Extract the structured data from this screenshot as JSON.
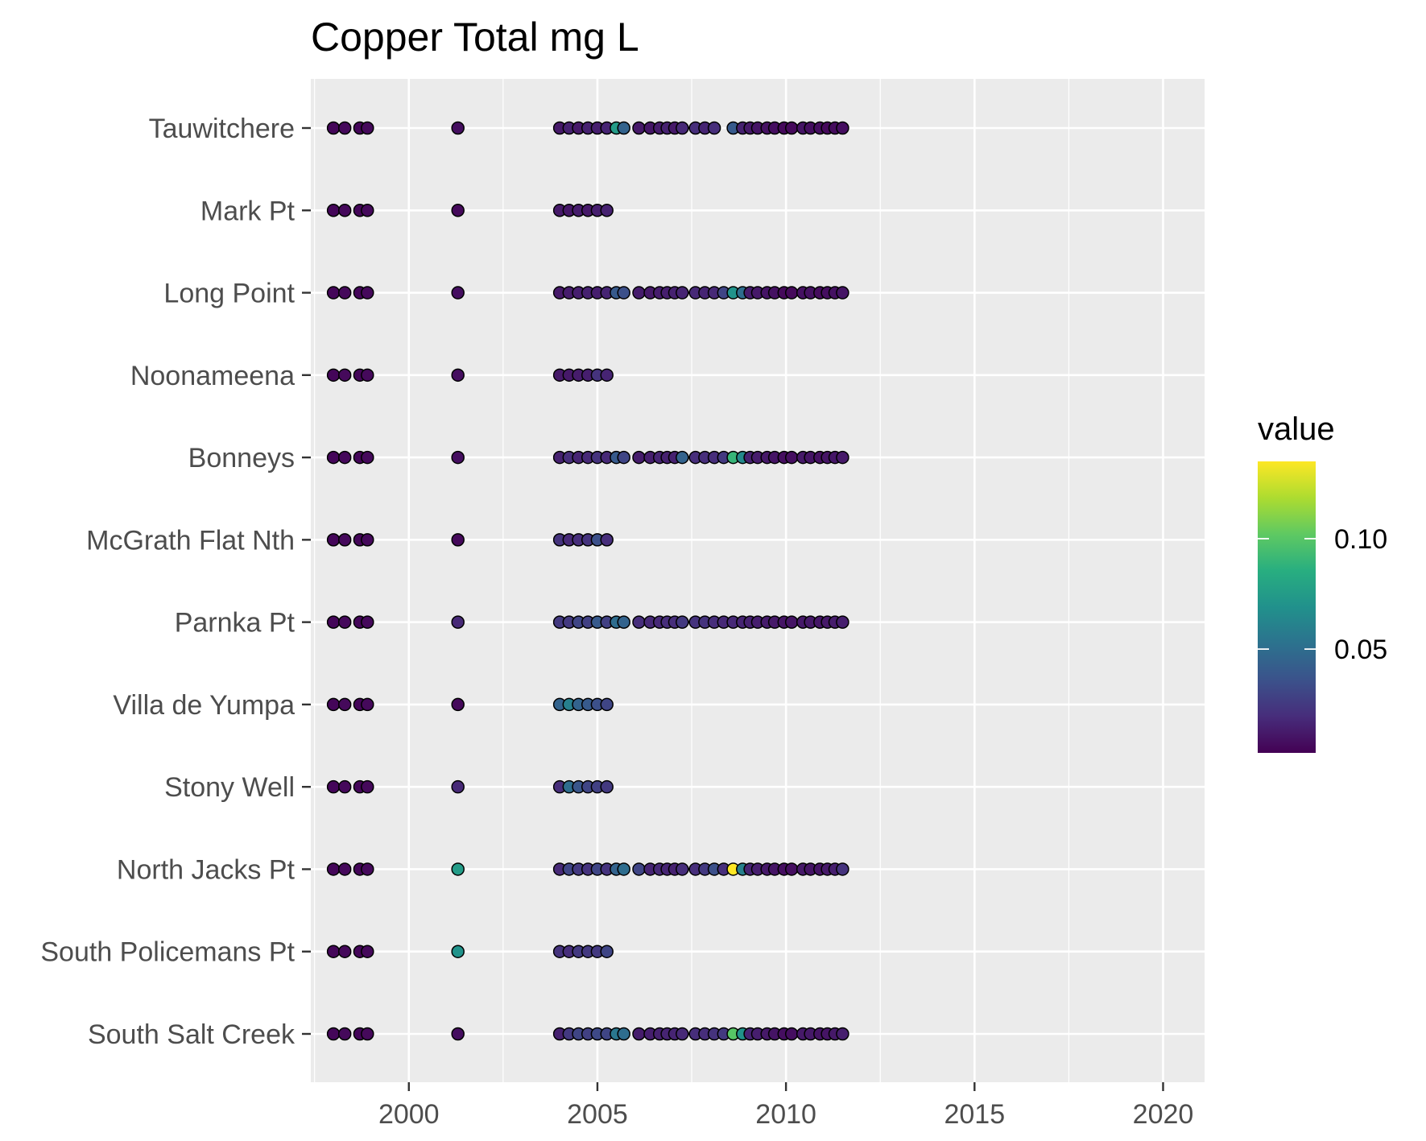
{
  "chart_data": {
    "type": "scatter",
    "title": "Copper Total mg L",
    "xlabel": "",
    "ylabel": "",
    "x_ticks": [
      "2000",
      "2005",
      "2010",
      "2015",
      "2020"
    ],
    "xlim": [
      1997.4,
      2021.1
    ],
    "grid": true,
    "legend": {
      "title": "value",
      "placement": "right",
      "ticks": [
        "0.05",
        "0.10"
      ],
      "range": [
        0.003,
        0.135
      ],
      "palette": "viridis"
    },
    "colors": {
      "panel": "#ebebeb",
      "grid": "#ffffff",
      "point_outline": "#000000"
    },
    "sites": [
      "Tauwitchere",
      "Mark Pt",
      "Long Point",
      "Noonameena",
      "Bonneys",
      "McGrath Flat Nth",
      "Parnka Pt",
      "Villa de Yumpa",
      "Stony Well",
      "North Jacks Pt",
      "South Policemans Pt",
      "South Salt Creek"
    ],
    "series": [
      {
        "site": "Tauwitchere",
        "x": [
          1998.0,
          1998.3,
          1998.7,
          1998.9,
          2001.3,
          2004.0,
          2004.25,
          2004.5,
          2004.75,
          2005.0,
          2005.25,
          2005.5,
          2005.7,
          2006.1,
          2006.4,
          2006.65,
          2006.85,
          2007.05,
          2007.25,
          2007.6,
          2007.85,
          2008.1,
          2008.6,
          2008.85,
          2009.05,
          2009.25,
          2009.5,
          2009.7,
          2009.95,
          2010.15,
          2010.45,
          2010.65,
          2010.9,
          2011.1,
          2011.3,
          2011.5
        ],
        "values": [
          0.005,
          0.006,
          0.005,
          0.006,
          0.008,
          0.012,
          0.015,
          0.012,
          0.015,
          0.014,
          0.016,
          0.075,
          0.045,
          0.012,
          0.011,
          0.013,
          0.015,
          0.012,
          0.018,
          0.02,
          0.016,
          0.02,
          0.04,
          0.015,
          0.012,
          0.01,
          0.009,
          0.008,
          0.006,
          0.006,
          0.01,
          0.008,
          0.008,
          0.006,
          0.007,
          0.008
        ]
      },
      {
        "site": "Mark Pt",
        "x": [
          1998.0,
          1998.3,
          1998.7,
          1998.9,
          2001.3,
          2004.0,
          2004.25,
          2004.5,
          2004.75,
          2005.0,
          2005.25
        ],
        "values": [
          0.005,
          0.006,
          0.005,
          0.006,
          0.006,
          0.012,
          0.011,
          0.013,
          0.012,
          0.014,
          0.015
        ]
      },
      {
        "site": "Long Point",
        "x": [
          1998.0,
          1998.3,
          1998.7,
          1998.9,
          2001.3,
          2004.0,
          2004.25,
          2004.5,
          2004.75,
          2005.0,
          2005.25,
          2005.5,
          2005.7,
          2006.1,
          2006.4,
          2006.65,
          2006.85,
          2007.05,
          2007.25,
          2007.6,
          2007.85,
          2008.1,
          2008.35,
          2008.6,
          2008.85,
          2009.05,
          2009.25,
          2009.5,
          2009.7,
          2009.95,
          2010.15,
          2010.45,
          2010.65,
          2010.9,
          2011.1,
          2011.3,
          2011.5
        ],
        "values": [
          0.005,
          0.006,
          0.005,
          0.006,
          0.008,
          0.012,
          0.013,
          0.014,
          0.015,
          0.014,
          0.016,
          0.04,
          0.035,
          0.013,
          0.012,
          0.013,
          0.014,
          0.015,
          0.016,
          0.018,
          0.016,
          0.018,
          0.03,
          0.07,
          0.05,
          0.013,
          0.012,
          0.01,
          0.009,
          0.006,
          0.006,
          0.009,
          0.009,
          0.007,
          0.008,
          0.009,
          0.01
        ]
      },
      {
        "site": "Noonameena",
        "x": [
          1998.0,
          1998.3,
          1998.7,
          1998.9,
          2001.3,
          2004.0,
          2004.25,
          2004.5,
          2004.75,
          2005.0,
          2005.25
        ],
        "values": [
          0.005,
          0.006,
          0.005,
          0.006,
          0.008,
          0.012,
          0.012,
          0.013,
          0.014,
          0.022,
          0.016
        ]
      },
      {
        "site": "Bonneys",
        "x": [
          1998.0,
          1998.3,
          1998.7,
          1998.9,
          2001.3,
          2004.0,
          2004.25,
          2004.5,
          2004.75,
          2005.0,
          2005.25,
          2005.5,
          2005.7,
          2006.1,
          2006.4,
          2006.65,
          2006.85,
          2007.05,
          2007.25,
          2007.6,
          2007.85,
          2008.1,
          2008.35,
          2008.6,
          2008.85,
          2009.05,
          2009.25,
          2009.5,
          2009.7,
          2009.95,
          2010.15,
          2010.45,
          2010.65,
          2010.9,
          2011.1,
          2011.3,
          2011.5
        ],
        "values": [
          0.005,
          0.006,
          0.005,
          0.006,
          0.008,
          0.015,
          0.02,
          0.016,
          0.018,
          0.022,
          0.018,
          0.04,
          0.03,
          0.013,
          0.014,
          0.016,
          0.015,
          0.015,
          0.045,
          0.02,
          0.02,
          0.02,
          0.025,
          0.09,
          0.065,
          0.015,
          0.013,
          0.012,
          0.01,
          0.008,
          0.008,
          0.012,
          0.01,
          0.009,
          0.01,
          0.011,
          0.012
        ]
      },
      {
        "site": "McGrath Flat Nth",
        "x": [
          1998.0,
          1998.3,
          1998.7,
          1998.9,
          2001.3,
          2004.0,
          2004.25,
          2004.5,
          2004.75,
          2005.0,
          2005.25
        ],
        "values": [
          0.005,
          0.006,
          0.005,
          0.006,
          0.006,
          0.022,
          0.018,
          0.02,
          0.022,
          0.035,
          0.02
        ]
      },
      {
        "site": "Parnka Pt",
        "x": [
          1998.0,
          1998.3,
          1998.7,
          1998.9,
          2001.3,
          2004.0,
          2004.25,
          2004.5,
          2004.75,
          2005.0,
          2005.25,
          2005.5,
          2005.7,
          2006.1,
          2006.4,
          2006.65,
          2006.85,
          2007.05,
          2007.25,
          2007.6,
          2007.85,
          2008.1,
          2008.35,
          2008.6,
          2008.85,
          2009.05,
          2009.25,
          2009.5,
          2009.7,
          2009.95,
          2010.15,
          2010.45,
          2010.65,
          2010.9,
          2011.1,
          2011.3,
          2011.5
        ],
        "values": [
          0.005,
          0.006,
          0.005,
          0.006,
          0.018,
          0.025,
          0.025,
          0.03,
          0.028,
          0.04,
          0.028,
          0.05,
          0.045,
          0.02,
          0.018,
          0.018,
          0.02,
          0.02,
          0.025,
          0.022,
          0.022,
          0.02,
          0.018,
          0.018,
          0.016,
          0.015,
          0.014,
          0.013,
          0.012,
          0.01,
          0.01,
          0.012,
          0.012,
          0.011,
          0.012,
          0.013,
          0.014
        ]
      },
      {
        "site": "Villa de Yumpa",
        "x": [
          1998.0,
          1998.3,
          1998.7,
          1998.9,
          2001.3,
          2004.0,
          2004.25,
          2004.5,
          2004.75,
          2005.0,
          2005.25
        ],
        "values": [
          0.005,
          0.006,
          0.005,
          0.006,
          0.006,
          0.045,
          0.06,
          0.045,
          0.04,
          0.035,
          0.03
        ]
      },
      {
        "site": "Stony Well",
        "x": [
          1998.0,
          1998.3,
          1998.7,
          1998.9,
          2001.3,
          2004.0,
          2004.25,
          2004.5,
          2004.75,
          2005.0,
          2005.25
        ],
        "values": [
          0.005,
          0.006,
          0.005,
          0.006,
          0.018,
          0.02,
          0.05,
          0.038,
          0.03,
          0.028,
          0.025
        ]
      },
      {
        "site": "North Jacks Pt",
        "x": [
          1998.0,
          1998.3,
          1998.7,
          1998.9,
          2001.3,
          2004.0,
          2004.25,
          2004.5,
          2004.75,
          2005.0,
          2005.25,
          2005.5,
          2005.7,
          2006.1,
          2006.4,
          2006.65,
          2006.85,
          2007.05,
          2007.25,
          2007.6,
          2007.85,
          2008.1,
          2008.35,
          2008.6,
          2008.85,
          2009.05,
          2009.25,
          2009.5,
          2009.7,
          2009.95,
          2010.15,
          2010.45,
          2010.65,
          2010.9,
          2011.1,
          2011.3,
          2011.5
        ],
        "values": [
          0.005,
          0.006,
          0.005,
          0.006,
          0.075,
          0.018,
          0.03,
          0.025,
          0.022,
          0.03,
          0.022,
          0.045,
          0.05,
          0.03,
          0.016,
          0.018,
          0.016,
          0.015,
          0.02,
          0.02,
          0.025,
          0.035,
          0.02,
          0.135,
          0.06,
          0.016,
          0.014,
          0.012,
          0.01,
          0.008,
          0.008,
          0.012,
          0.01,
          0.01,
          0.012,
          0.014,
          0.022
        ]
      },
      {
        "site": "South Policemans Pt",
        "x": [
          1998.0,
          1998.3,
          1998.7,
          1998.9,
          2001.3,
          2004.0,
          2004.25,
          2004.5,
          2004.75,
          2005.0,
          2005.25
        ],
        "values": [
          0.005,
          0.006,
          0.005,
          0.006,
          0.07,
          0.022,
          0.02,
          0.025,
          0.025,
          0.025,
          0.03
        ]
      },
      {
        "site": "South Salt Creek",
        "x": [
          1998.0,
          1998.3,
          1998.7,
          1998.9,
          2001.3,
          2004.0,
          2004.25,
          2004.5,
          2004.75,
          2005.0,
          2005.25,
          2005.5,
          2005.7,
          2006.1,
          2006.4,
          2006.65,
          2006.85,
          2007.05,
          2007.25,
          2007.6,
          2007.85,
          2008.1,
          2008.35,
          2008.6,
          2008.85,
          2009.05,
          2009.25,
          2009.5,
          2009.7,
          2009.95,
          2010.15,
          2010.45,
          2010.65,
          2010.9,
          2011.1,
          2011.3,
          2011.5
        ],
        "values": [
          0.005,
          0.006,
          0.005,
          0.006,
          0.008,
          0.015,
          0.025,
          0.03,
          0.028,
          0.032,
          0.03,
          0.055,
          0.05,
          0.013,
          0.014,
          0.015,
          0.016,
          0.016,
          0.018,
          0.02,
          0.02,
          0.022,
          0.025,
          0.1,
          0.07,
          0.016,
          0.014,
          0.012,
          0.01,
          0.008,
          0.008,
          0.012,
          0.012,
          0.01,
          0.01,
          0.012,
          0.014
        ]
      }
    ]
  }
}
